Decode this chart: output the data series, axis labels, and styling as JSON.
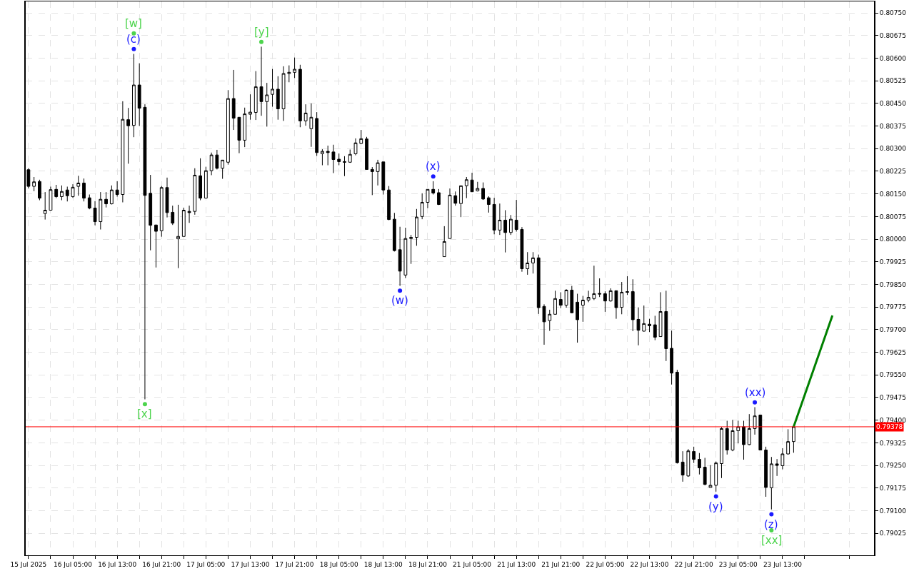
{
  "chart_data": {
    "type": "candlestick",
    "color": "#000000",
    "grid": true,
    "categories": [
      "15 Jul 2025",
      null,
      null,
      null,
      null,
      null,
      null,
      null,
      "16 Jul 05:00",
      null,
      null,
      null,
      null,
      null,
      null,
      null,
      "16 Jul 13:00",
      null,
      null,
      null,
      null,
      null,
      null,
      null,
      "16 Jul 21:00",
      null,
      null,
      null,
      null,
      null,
      null,
      null,
      "17 Jul 05:00",
      null,
      null,
      null,
      null,
      null,
      null,
      null,
      "17 Jul 13:00",
      null,
      null,
      null,
      null,
      null,
      null,
      null,
      "17 Jul 21:00",
      null,
      null,
      null,
      null,
      null,
      null,
      null,
      "18 Jul 05:00",
      null,
      null,
      null,
      null,
      null,
      null,
      null,
      "18 Jul 13:00",
      null,
      null,
      null,
      null,
      null,
      null,
      null,
      "18 Jul 21:00",
      null,
      null,
      null,
      null,
      null,
      null,
      null,
      "21 Jul 05:00",
      null,
      null,
      null,
      null,
      null,
      null,
      null,
      "21 Jul 13:00",
      null,
      null,
      null,
      null,
      null,
      null,
      null,
      "21 Jul 21:00",
      null,
      null,
      null,
      null,
      null,
      null,
      null,
      "22 Jul 05:00",
      null,
      null,
      null,
      null,
      null,
      null,
      null,
      "22 Jul 13:00",
      null,
      null,
      null,
      null,
      null,
      null,
      null,
      "22 Jul 21:00",
      null,
      null,
      null,
      null,
      null,
      null,
      null,
      "23 Jul 05:00",
      null,
      null,
      null,
      null,
      null,
      null,
      null,
      "23 Jul 13:00",
      null,
      null,
      null,
      null,
      null,
      null,
      null,
      null,
      null,
      null,
      null,
      null,
      null,
      null,
      null,
      null
    ],
    "ohlc": [
      [
        0.8023,
        0.80235,
        0.80168,
        0.80175
      ],
      [
        0.80175,
        0.80206,
        0.80159,
        0.8019
      ],
      [
        0.80191,
        0.80197,
        0.80129,
        0.80136
      ],
      [
        0.80085,
        0.80156,
        0.80065,
        0.80096
      ],
      [
        0.80096,
        0.80174,
        0.80096,
        0.80164
      ],
      [
        0.80165,
        0.8018,
        0.80136,
        0.80141
      ],
      [
        0.80141,
        0.80178,
        0.80129,
        0.80158
      ],
      [
        0.80163,
        0.80174,
        0.80125,
        0.80144
      ],
      [
        0.80141,
        0.80182,
        0.80137,
        0.80172
      ],
      [
        0.80175,
        0.8021,
        0.80144,
        0.80186
      ],
      [
        0.80186,
        0.80201,
        0.80125,
        0.80136
      ],
      [
        0.80137,
        0.80148,
        0.80099,
        0.80103
      ],
      [
        0.80103,
        0.80126,
        0.80046,
        0.80058
      ],
      [
        0.80058,
        0.80156,
        0.80032,
        0.80132
      ],
      [
        0.80132,
        0.80156,
        0.80105,
        0.80117
      ],
      [
        0.80117,
        0.80178,
        0.80115,
        0.80163
      ],
      [
        0.80163,
        0.80192,
        0.80141,
        0.80148
      ],
      [
        0.80148,
        0.80457,
        0.80122,
        0.80397
      ],
      [
        0.80396,
        0.80435,
        0.8025,
        0.80376
      ],
      [
        0.80377,
        0.80614,
        0.80338,
        0.80511
      ],
      [
        0.80511,
        0.80583,
        0.80375,
        0.80434
      ],
      [
        0.80437,
        0.80447,
        0.79469,
        0.80145
      ],
      [
        0.80152,
        0.80213,
        0.79963,
        0.80046
      ],
      [
        0.80047,
        0.80047,
        0.79906,
        0.80026
      ],
      [
        0.80028,
        0.80176,
        0.80008,
        0.80171
      ],
      [
        0.80171,
        0.80204,
        0.80072,
        0.80088
      ],
      [
        0.80089,
        0.80111,
        0.80047,
        0.80053
      ],
      [
        0.80001,
        0.80114,
        0.79904,
        0.80009
      ],
      [
        0.80009,
        0.80104,
        0.80009,
        0.80096
      ],
      [
        0.80092,
        0.80111,
        0.80054,
        0.80088
      ],
      [
        0.80092,
        0.80235,
        0.80081,
        0.80212
      ],
      [
        0.8021,
        0.80268,
        0.80129,
        0.80136
      ],
      [
        0.80136,
        0.8024,
        0.80136,
        0.80227
      ],
      [
        0.80227,
        0.80287,
        0.80212,
        0.80279
      ],
      [
        0.80279,
        0.80296,
        0.80231,
        0.80235
      ],
      [
        0.80235,
        0.80262,
        0.802,
        0.80262
      ],
      [
        0.80255,
        0.80494,
        0.80247,
        0.80466
      ],
      [
        0.80466,
        0.80561,
        0.80362,
        0.80401
      ],
      [
        0.80404,
        0.80404,
        0.80285,
        0.80328
      ],
      [
        0.80328,
        0.80436,
        0.80305,
        0.80415
      ],
      [
        0.80414,
        0.8048,
        0.80396,
        0.80421
      ],
      [
        0.8042,
        0.80557,
        0.80395,
        0.80505
      ],
      [
        0.80505,
        0.80638,
        0.80409,
        0.80456
      ],
      [
        0.80456,
        0.80518,
        0.80373,
        0.80478
      ],
      [
        0.8048,
        0.80564,
        0.80439,
        0.80497
      ],
      [
        0.80497,
        0.8054,
        0.80396,
        0.80432
      ],
      [
        0.80432,
        0.80573,
        0.80392,
        0.80549
      ],
      [
        0.80549,
        0.80576,
        0.8052,
        0.80553
      ],
      [
        0.80553,
        0.80602,
        0.80534,
        0.80563
      ],
      [
        0.80563,
        0.80578,
        0.80371,
        0.80392
      ],
      [
        0.80392,
        0.80447,
        0.80376,
        0.80418
      ],
      [
        0.80366,
        0.8045,
        0.80306,
        0.80404
      ],
      [
        0.804,
        0.80421,
        0.80276,
        0.80287
      ],
      [
        0.80283,
        0.80298,
        0.80245,
        0.80291
      ],
      [
        0.80291,
        0.8031,
        0.80245,
        0.80287
      ],
      [
        0.80289,
        0.80313,
        0.80219,
        0.80264
      ],
      [
        0.80265,
        0.80284,
        0.80245,
        0.80257
      ],
      [
        0.80257,
        0.80275,
        0.80209,
        0.80255
      ],
      [
        0.80255,
        0.80297,
        0.80253,
        0.80281
      ],
      [
        0.80283,
        0.80334,
        0.80278,
        0.80319
      ],
      [
        0.80317,
        0.80362,
        0.80315,
        0.80333
      ],
      [
        0.80332,
        0.80339,
        0.80231,
        0.80231
      ],
      [
        0.80231,
        0.80239,
        0.80146,
        0.80224
      ],
      [
        0.80224,
        0.80263,
        0.80178,
        0.80253
      ],
      [
        0.80256,
        0.80256,
        0.80148,
        0.80163
      ],
      [
        0.80163,
        0.80176,
        0.80063,
        0.80065
      ],
      [
        0.80066,
        0.80087,
        0.79959,
        0.79962
      ],
      [
        0.79965,
        0.80041,
        0.79845,
        0.79894
      ],
      [
        0.79881,
        0.80038,
        0.79871,
        0.80002
      ],
      [
        0.80002,
        0.80014,
        0.79918,
        0.80006
      ],
      [
        0.80006,
        0.801,
        0.79978,
        0.80073
      ],
      [
        0.80075,
        0.80152,
        0.80066,
        0.80122
      ],
      [
        0.80122,
        0.80165,
        0.80103,
        0.80165
      ],
      [
        0.80165,
        0.80192,
        0.80148,
        0.80153
      ],
      [
        0.80154,
        0.80166,
        0.80113,
        0.80115
      ],
      [
        0.79942,
        0.80043,
        0.79942,
        0.79992
      ],
      [
        0.80002,
        0.80168,
        0.80002,
        0.80146
      ],
      [
        0.80144,
        0.80158,
        0.80111,
        0.80119
      ],
      [
        0.80118,
        0.80177,
        0.80073,
        0.80177
      ],
      [
        0.80177,
        0.80206,
        0.80136,
        0.80197
      ],
      [
        0.80196,
        0.8022,
        0.80157,
        0.80157
      ],
      [
        0.8016,
        0.8019,
        0.80158,
        0.80168
      ],
      [
        0.80168,
        0.80188,
        0.8013,
        0.80133
      ],
      [
        0.80137,
        0.80142,
        0.80088,
        0.80115
      ],
      [
        0.80115,
        0.80137,
        0.80016,
        0.8003
      ],
      [
        0.8003,
        0.80118,
        0.80014,
        0.80063
      ],
      [
        0.80063,
        0.80096,
        0.79956,
        0.80022
      ],
      [
        0.80022,
        0.8008,
        0.80014,
        0.80066
      ],
      [
        0.80063,
        0.8013,
        0.80025,
        0.80032
      ],
      [
        0.80032,
        0.8004,
        0.79892,
        0.79902
      ],
      [
        0.79902,
        0.79957,
        0.79882,
        0.79921
      ],
      [
        0.79921,
        0.79957,
        0.79886,
        0.79938
      ],
      [
        0.79938,
        0.79949,
        0.79752,
        0.79773
      ],
      [
        0.79777,
        0.79784,
        0.7965,
        0.79726
      ],
      [
        0.7973,
        0.79766,
        0.79696,
        0.79751
      ],
      [
        0.79751,
        0.79829,
        0.7975,
        0.79803
      ],
      [
        0.798,
        0.79824,
        0.79771,
        0.79781
      ],
      [
        0.79781,
        0.79834,
        0.79773,
        0.79831
      ],
      [
        0.79831,
        0.79845,
        0.79755,
        0.79756
      ],
      [
        0.79791,
        0.79819,
        0.79657,
        0.79733
      ],
      [
        0.79781,
        0.79812,
        0.79726,
        0.79798
      ],
      [
        0.79798,
        0.79829,
        0.79791,
        0.79807
      ],
      [
        0.79803,
        0.79912,
        0.79798,
        0.79819
      ],
      [
        0.7982,
        0.7987,
        0.79808,
        0.79818
      ],
      [
        0.79819,
        0.79827,
        0.79759,
        0.79795
      ],
      [
        0.79795,
        0.79837,
        0.79793,
        0.79829
      ],
      [
        0.79829,
        0.7983,
        0.79736,
        0.79773
      ],
      [
        0.79774,
        0.79858,
        0.79751,
        0.79824
      ],
      [
        0.79826,
        0.79877,
        0.79815,
        0.79824
      ],
      [
        0.79826,
        0.79867,
        0.79695,
        0.79733
      ],
      [
        0.79734,
        0.79774,
        0.79648,
        0.79698
      ],
      [
        0.79695,
        0.7978,
        0.79694,
        0.7972
      ],
      [
        0.79718,
        0.79736,
        0.79692,
        0.79713
      ],
      [
        0.79716,
        0.79746,
        0.79665,
        0.79675
      ],
      [
        0.79677,
        0.79824,
        0.79677,
        0.7976
      ],
      [
        0.7976,
        0.79829,
        0.79596,
        0.79637
      ],
      [
        0.79638,
        0.79697,
        0.79518,
        0.79556
      ],
      [
        0.79559,
        0.79567,
        0.79256,
        0.79259
      ],
      [
        0.79261,
        0.79297,
        0.79196,
        0.79218
      ],
      [
        0.79215,
        0.79304,
        0.79212,
        0.79298
      ],
      [
        0.79296,
        0.79312,
        0.79258,
        0.7927
      ],
      [
        0.7927,
        0.79291,
        0.7922,
        0.79242
      ],
      [
        0.79244,
        0.79275,
        0.79184,
        0.79187
      ],
      [
        0.79177,
        0.79251,
        0.79177,
        0.79184
      ],
      [
        0.79184,
        0.79263,
        0.79163,
        0.79258
      ],
      [
        0.79256,
        0.79377,
        0.79208,
        0.79372
      ],
      [
        0.79372,
        0.79398,
        0.79286,
        0.79301
      ],
      [
        0.79301,
        0.79401,
        0.79297,
        0.79365
      ],
      [
        0.79365,
        0.79398,
        0.79323,
        0.79378
      ],
      [
        0.79378,
        0.79398,
        0.79269,
        0.79319
      ],
      [
        0.79319,
        0.7942,
        0.79317,
        0.79372
      ],
      [
        0.79372,
        0.79443,
        0.79352,
        0.79414
      ],
      [
        0.79417,
        0.79417,
        0.79301,
        0.79301
      ],
      [
        0.79301,
        0.79312,
        0.79146,
        0.79177
      ],
      [
        0.79176,
        0.79278,
        0.79104,
        0.79255
      ],
      [
        0.79255,
        0.79271,
        0.79215,
        0.7925
      ],
      [
        0.79249,
        0.79307,
        0.79237,
        0.79288
      ],
      [
        0.79288,
        0.7937,
        0.79286,
        0.79329
      ],
      [
        0.79329,
        0.79378,
        0.79292,
        0.79378
      ],
      null,
      null,
      null,
      null,
      null,
      null,
      null,
      null,
      null,
      null,
      null,
      null,
      null,
      null
    ],
    "series": [
      {
        "type": "line",
        "color": "#008000",
        "values": [
          null,
          null,
          null,
          null,
          null,
          null,
          null,
          null,
          null,
          null,
          null,
          null,
          null,
          null,
          null,
          null,
          null,
          null,
          null,
          null,
          null,
          null,
          null,
          null,
          null,
          null,
          null,
          null,
          null,
          null,
          null,
          null,
          null,
          null,
          null,
          null,
          null,
          null,
          null,
          null,
          null,
          null,
          null,
          null,
          null,
          null,
          null,
          null,
          null,
          null,
          null,
          null,
          null,
          null,
          null,
          null,
          null,
          null,
          null,
          null,
          null,
          null,
          null,
          null,
          null,
          null,
          null,
          null,
          null,
          null,
          null,
          null,
          null,
          null,
          null,
          null,
          null,
          null,
          null,
          null,
          null,
          null,
          null,
          null,
          null,
          null,
          null,
          null,
          null,
          null,
          null,
          null,
          null,
          null,
          null,
          null,
          null,
          null,
          null,
          null,
          null,
          null,
          null,
          null,
          null,
          null,
          null,
          null,
          null,
          null,
          null,
          null,
          null,
          null,
          null,
          null,
          null,
          null,
          null,
          null,
          null,
          null,
          null,
          null,
          null,
          null,
          null,
          null,
          null,
          null,
          null,
          null,
          null,
          null,
          null,
          null,
          null,
          null,
          0.79378,
          null,
          null,
          null,
          null,
          null,
          null,
          0.79747,
          null,
          null,
          null,
          null,
          null,
          null,
          null
        ]
      },
      {
        "type": "scatter",
        "marker": "circle",
        "color": "#1a1aff",
        "values": [
          null,
          null,
          null,
          null,
          null,
          null,
          null,
          null,
          null,
          null,
          null,
          null,
          null,
          null,
          null,
          null,
          null,
          null,
          null,
          0.8063,
          null,
          null,
          null,
          null,
          null,
          null,
          null,
          null,
          null,
          null,
          null,
          null,
          null,
          null,
          null,
          null,
          null,
          null,
          null,
          null,
          null,
          null,
          null,
          null,
          null,
          null,
          null,
          null,
          null,
          null,
          null,
          null,
          null,
          null,
          null,
          null,
          null,
          null,
          null,
          null,
          null,
          null,
          null,
          null,
          null,
          null,
          null,
          0.79829,
          null,
          null,
          null,
          null,
          null,
          0.80208,
          null,
          null,
          null,
          null,
          null,
          null,
          null,
          null,
          null,
          null,
          null,
          null,
          null,
          null,
          null,
          null,
          null,
          null,
          null,
          null,
          null,
          null,
          null,
          null,
          null,
          null,
          null,
          null,
          null,
          null,
          null,
          null,
          null,
          null,
          null,
          null,
          null,
          null,
          null,
          null,
          null,
          null,
          null,
          null,
          null,
          null,
          null,
          null,
          null,
          null,
          0.79147,
          null,
          null,
          null,
          null,
          null,
          null,
          0.79459,
          null,
          null,
          0.79088,
          null,
          null,
          null,
          null,
          null,
          null,
          null,
          null,
          null,
          null,
          null,
          null,
          null,
          null,
          null,
          null,
          null,
          null
        ],
        "value_labels": [
          null,
          null,
          null,
          null,
          null,
          null,
          null,
          null,
          null,
          null,
          null,
          null,
          null,
          null,
          null,
          null,
          null,
          null,
          null,
          "(c)",
          null,
          null,
          null,
          null,
          null,
          null,
          null,
          null,
          null,
          null,
          null,
          null,
          null,
          null,
          null,
          null,
          null,
          null,
          null,
          null,
          null,
          null,
          null,
          null,
          null,
          null,
          null,
          null,
          null,
          null,
          null,
          null,
          null,
          null,
          null,
          null,
          null,
          null,
          null,
          null,
          null,
          null,
          null,
          null,
          null,
          null,
          null,
          "(w)",
          null,
          null,
          null,
          null,
          null,
          "(x)",
          null,
          null,
          null,
          null,
          null,
          null,
          null,
          null,
          null,
          null,
          null,
          null,
          null,
          null,
          null,
          null,
          null,
          null,
          null,
          null,
          null,
          null,
          null,
          null,
          null,
          null,
          null,
          null,
          null,
          null,
          null,
          null,
          null,
          null,
          null,
          null,
          null,
          null,
          null,
          null,
          null,
          null,
          null,
          null,
          null,
          null,
          null,
          null,
          null,
          null,
          "(y)",
          null,
          null,
          null,
          null,
          null,
          null,
          "(xx)",
          null,
          null,
          "(z)",
          null,
          null,
          null,
          null,
          null,
          null,
          null,
          null,
          null,
          null,
          null,
          null,
          null,
          null,
          null,
          null,
          null,
          null
        ]
      },
      {
        "type": "scatter",
        "marker": "circle",
        "color": "#4cd44c",
        "values": [
          null,
          null,
          null,
          null,
          null,
          null,
          null,
          null,
          null,
          null,
          null,
          null,
          null,
          null,
          null,
          null,
          null,
          null,
          null,
          0.80682,
          null,
          0.79453,
          null,
          null,
          null,
          null,
          null,
          null,
          null,
          null,
          null,
          null,
          null,
          null,
          null,
          null,
          null,
          null,
          null,
          null,
          null,
          null,
          0.80654,
          null,
          null,
          null,
          null,
          null,
          null,
          null,
          null,
          null,
          null,
          null,
          null,
          null,
          null,
          null,
          null,
          null,
          null,
          null,
          null,
          null,
          null,
          null,
          null,
          null,
          null,
          null,
          null,
          null,
          null,
          null,
          null,
          null,
          null,
          null,
          null,
          null,
          null,
          null,
          null,
          null,
          null,
          null,
          null,
          null,
          null,
          null,
          null,
          null,
          null,
          null,
          null,
          null,
          null,
          null,
          null,
          null,
          null,
          null,
          null,
          null,
          null,
          null,
          null,
          null,
          null,
          null,
          null,
          null,
          null,
          null,
          null,
          null,
          null,
          null,
          null,
          null,
          null,
          null,
          null,
          null,
          null,
          null,
          null,
          null,
          null,
          null,
          null,
          null,
          null,
          null,
          0.79035,
          null,
          null,
          null,
          null,
          null,
          null,
          null,
          null,
          null,
          null,
          null,
          null,
          null,
          null,
          null,
          null,
          null,
          null
        ],
        "value_labels": [
          null,
          null,
          null,
          null,
          null,
          null,
          null,
          null,
          null,
          null,
          null,
          null,
          null,
          null,
          null,
          null,
          null,
          null,
          null,
          "[w]",
          null,
          "[x]",
          null,
          null,
          null,
          null,
          null,
          null,
          null,
          null,
          null,
          null,
          null,
          null,
          null,
          null,
          null,
          null,
          null,
          null,
          null,
          null,
          "[y]",
          null,
          null,
          null,
          null,
          null,
          null,
          null,
          null,
          null,
          null,
          null,
          null,
          null,
          null,
          null,
          null,
          null,
          null,
          null,
          null,
          null,
          null,
          null,
          null,
          null,
          null,
          null,
          null,
          null,
          null,
          null,
          null,
          null,
          null,
          null,
          null,
          null,
          null,
          null,
          null,
          null,
          null,
          null,
          null,
          null,
          null,
          null,
          null,
          null,
          null,
          null,
          null,
          null,
          null,
          null,
          null,
          null,
          null,
          null,
          null,
          null,
          null,
          null,
          null,
          null,
          null,
          null,
          null,
          null,
          null,
          null,
          null,
          null,
          null,
          null,
          null,
          null,
          null,
          null,
          null,
          null,
          null,
          null,
          null,
          null,
          null,
          null,
          null,
          null,
          null,
          null,
          "[xx]",
          null,
          null,
          null,
          null,
          null,
          null,
          null,
          null,
          null,
          null,
          null,
          null,
          null,
          null,
          null,
          null,
          null,
          null
        ]
      }
    ],
    "ylim": [
      0.78952,
      0.80788
    ],
    "yticks": [
      {
        "value": 0.8075,
        "label": "0.80750"
      },
      0.80675,
      {
        "value": 0.806,
        "label": "0.80600"
      },
      0.80525,
      {
        "value": 0.8045,
        "label": "0.80450"
      },
      0.80375,
      {
        "value": 0.803,
        "label": "0.80300"
      },
      0.80225,
      {
        "value": 0.8015,
        "label": "0.80150"
      },
      0.80075,
      {
        "value": 0.8,
        "label": "0.80000"
      },
      0.79925,
      {
        "value": 0.7985,
        "label": "0.79850"
      },
      0.79775,
      {
        "value": 0.797,
        "label": "0.79700"
      },
      0.79625,
      {
        "value": 0.7955,
        "label": "0.79550"
      },
      0.79475,
      {
        "value": 0.794,
        "label": "0.79400"
      },
      0.79325,
      {
        "value": 0.7925,
        "label": "0.79250"
      },
      0.79175,
      {
        "value": 0.791,
        "label": "0.79100"
      },
      0.79025
    ],
    "ref_lines": [
      {
        "axis": "y",
        "value": 0.79378,
        "label": "0.79378",
        "color": "#ff0000"
      }
    ]
  }
}
